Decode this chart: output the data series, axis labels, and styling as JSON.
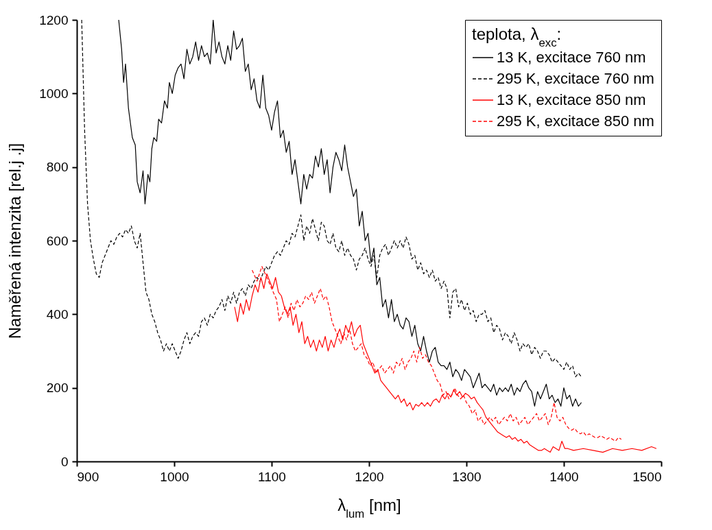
{
  "chart_data": {
    "type": "line",
    "xlabel": "λ$_{lum}$ [nm]",
    "ylabel": "Naměřená intenzita [rel.j .j]",
    "legend_title": "teplota, λ$_{exc}$:",
    "legend": "top right",
    "grid": false,
    "xlim": [
      900,
      1500
    ],
    "ylim": [
      0,
      1200
    ],
    "xticks": [
      900,
      1000,
      1100,
      1200,
      1300,
      1400,
      1500
    ],
    "yticks": [
      0,
      200,
      400,
      600,
      800,
      1000,
      1200
    ],
    "series": [
      {
        "name": "13 K, excitace 760 nm",
        "color": "#000000",
        "line_style": "solid",
        "x": [
          943,
          946,
          948,
          950,
          953,
          957,
          960,
          962,
          965,
          968,
          970,
          973,
          975,
          977,
          979,
          982,
          984,
          987,
          990,
          993,
          995,
          998,
          1001,
          1004,
          1007,
          1010,
          1013,
          1016,
          1019,
          1022,
          1025,
          1028,
          1031,
          1034,
          1037,
          1040,
          1043,
          1046,
          1049,
          1052,
          1055,
          1058,
          1061,
          1064,
          1067,
          1070,
          1073,
          1076,
          1079,
          1082,
          1085,
          1088,
          1091,
          1094,
          1097,
          1100,
          1103,
          1106,
          1109,
          1112,
          1115,
          1118,
          1121,
          1124,
          1127,
          1130,
          1133,
          1136,
          1139,
          1142,
          1145,
          1148,
          1151,
          1154,
          1157,
          1160,
          1163,
          1166,
          1169,
          1172,
          1175,
          1178,
          1181,
          1184,
          1187,
          1190,
          1193,
          1196,
          1199,
          1202,
          1205,
          1208,
          1211,
          1214,
          1217,
          1220,
          1223,
          1226,
          1229,
          1232,
          1235,
          1238,
          1241,
          1244,
          1247,
          1250,
          1253,
          1256,
          1259,
          1262,
          1265,
          1268,
          1271,
          1274,
          1277,
          1280,
          1283,
          1286,
          1289,
          1292,
          1295,
          1298,
          1301,
          1304,
          1307,
          1310,
          1313,
          1316,
          1319,
          1322,
          1325,
          1328,
          1331,
          1334,
          1337,
          1340,
          1343,
          1346,
          1349,
          1352,
          1355,
          1358,
          1361,
          1364,
          1367,
          1370,
          1373,
          1376,
          1379,
          1382,
          1385,
          1388,
          1391,
          1394,
          1397,
          1400,
          1403,
          1406,
          1409,
          1412,
          1415,
          1418
        ],
        "values": [
          1200,
          1120,
          1030,
          1080,
          960,
          880,
          860,
          760,
          730,
          790,
          700,
          780,
          760,
          850,
          880,
          870,
          930,
          920,
          980,
          960,
          1030,
          1000,
          1050,
          1070,
          1080,
          1040,
          1120,
          1080,
          1100,
          1140,
          1090,
          1130,
          1100,
          1110,
          1080,
          1200,
          1110,
          1140,
          1100,
          1080,
          1130,
          1090,
          1170,
          1120,
          1130,
          1150,
          1060,
          1080,
          1010,
          1040,
          980,
          960,
          1050,
          960,
          940,
          900,
          950,
          980,
          880,
          900,
          840,
          870,
          780,
          820,
          760,
          700,
          780,
          740,
          780,
          770,
          830,
          800,
          850,
          780,
          820,
          730,
          800,
          840,
          820,
          790,
          860,
          800,
          760,
          720,
          740,
          640,
          680,
          600,
          620,
          540,
          580,
          480,
          500,
          420,
          440,
          390,
          440,
          380,
          400,
          370,
          360,
          390,
          380,
          340,
          370,
          320,
          300,
          340,
          300,
          270,
          300,
          310,
          270,
          260,
          260,
          250,
          270,
          230,
          250,
          240,
          220,
          250,
          240,
          230,
          200,
          220,
          240,
          200,
          210,
          200,
          190,
          210,
          180,
          200,
          190,
          200,
          190,
          210,
          180,
          200,
          190,
          210,
          220,
          200,
          190,
          150,
          190,
          170,
          190,
          210,
          170,
          180,
          160,
          170,
          150,
          200,
          170,
          180,
          150,
          170,
          150,
          160
        ]
      },
      {
        "name": "295 K, excitace 760 nm",
        "color": "#000000",
        "line_style": "dashed",
        "x": [
          905,
          908,
          911,
          914,
          917,
          920,
          923,
          926,
          929,
          932,
          935,
          938,
          941,
          944,
          947,
          950,
          953,
          956,
          959,
          962,
          965,
          968,
          971,
          974,
          977,
          980,
          983,
          986,
          989,
          992,
          995,
          998,
          1001,
          1004,
          1007,
          1010,
          1013,
          1016,
          1019,
          1022,
          1025,
          1028,
          1031,
          1034,
          1037,
          1040,
          1043,
          1046,
          1049,
          1052,
          1055,
          1058,
          1061,
          1064,
          1067,
          1070,
          1073,
          1076,
          1079,
          1082,
          1085,
          1088,
          1091,
          1094,
          1097,
          1100,
          1103,
          1106,
          1109,
          1112,
          1115,
          1118,
          1121,
          1124,
          1127,
          1130,
          1133,
          1136,
          1139,
          1142,
          1145,
          1148,
          1151,
          1154,
          1157,
          1160,
          1163,
          1166,
          1169,
          1172,
          1175,
          1178,
          1181,
          1184,
          1187,
          1190,
          1193,
          1196,
          1199,
          1202,
          1205,
          1208,
          1211,
          1214,
          1217,
          1220,
          1223,
          1226,
          1229,
          1232,
          1235,
          1238,
          1241,
          1244,
          1247,
          1250,
          1253,
          1256,
          1259,
          1262,
          1265,
          1268,
          1271,
          1274,
          1277,
          1280,
          1283,
          1286,
          1289,
          1292,
          1295,
          1298,
          1301,
          1304,
          1307,
          1310,
          1313,
          1316,
          1319,
          1322,
          1325,
          1328,
          1331,
          1334,
          1337,
          1340,
          1343,
          1346,
          1349,
          1352,
          1355,
          1358,
          1361,
          1364,
          1367,
          1370,
          1373,
          1376,
          1379,
          1382,
          1385,
          1388,
          1391,
          1394,
          1397,
          1400,
          1403,
          1406,
          1409,
          1412,
          1415,
          1418
        ],
        "values": [
          1200,
          900,
          700,
          600,
          550,
          510,
          500,
          540,
          560,
          580,
          600,
          590,
          610,
          620,
          610,
          630,
          620,
          640,
          600,
          580,
          620,
          540,
          460,
          440,
          400,
          380,
          350,
          330,
          300,
          320,
          300,
          320,
          300,
          280,
          300,
          330,
          350,
          320,
          340,
          350,
          340,
          380,
          390,
          370,
          400,
          390,
          410,
          420,
          440,
          410,
          450,
          430,
          460,
          430,
          460,
          470,
          450,
          480,
          470,
          490,
          500,
          490,
          510,
          530,
          520,
          540,
          560,
          570,
          560,
          580,
          600,
          590,
          620,
          610,
          640,
          670,
          600,
          640,
          620,
          660,
          630,
          600,
          650,
          640,
          600,
          590,
          620,
          580,
          570,
          600,
          560,
          580,
          560,
          550,
          520,
          550,
          560,
          580,
          550,
          530,
          560,
          500,
          560,
          580,
          590,
          560,
          580,
          600,
          580,
          600,
          580,
          610,
          590,
          550,
          560,
          520,
          540,
          510,
          520,
          500,
          520,
          490,
          500,
          470,
          490,
          470,
          390,
          460,
          470,
          420,
          440,
          410,
          430,
          400,
          410,
          380,
          400,
          400,
          410,
          380,
          390,
          350,
          370,
          360,
          330,
          350,
          340,
          320,
          350,
          330,
          300,
          320,
          310,
          320,
          290,
          310,
          300,
          280,
          300,
          300,
          290,
          270,
          280,
          270,
          260,
          250,
          270,
          250,
          260,
          230,
          240,
          230
        ]
      },
      {
        "name": "13 K, excitace 850 nm",
        "color": "#ff0000",
        "line_style": "solid",
        "x": [
          1062,
          1065,
          1068,
          1071,
          1074,
          1077,
          1080,
          1083,
          1086,
          1089,
          1092,
          1095,
          1098,
          1101,
          1104,
          1107,
          1110,
          1113,
          1116,
          1119,
          1122,
          1125,
          1128,
          1131,
          1134,
          1137,
          1140,
          1143,
          1146,
          1149,
          1152,
          1155,
          1158,
          1161,
          1164,
          1167,
          1170,
          1173,
          1176,
          1179,
          1182,
          1185,
          1188,
          1191,
          1194,
          1197,
          1200,
          1203,
          1206,
          1209,
          1212,
          1215,
          1218,
          1221,
          1224,
          1227,
          1230,
          1233,
          1236,
          1239,
          1242,
          1245,
          1248,
          1251,
          1254,
          1257,
          1260,
          1263,
          1266,
          1269,
          1272,
          1275,
          1278,
          1281,
          1284,
          1287,
          1290,
          1293,
          1296,
          1299,
          1302,
          1305,
          1308,
          1311,
          1314,
          1317,
          1320,
          1323,
          1326,
          1329,
          1332,
          1335,
          1338,
          1341,
          1344,
          1347,
          1350,
          1353,
          1356,
          1359,
          1362,
          1365,
          1368,
          1371,
          1374,
          1377,
          1380,
          1383,
          1386,
          1389,
          1392,
          1395,
          1398,
          1401,
          1404,
          1410,
          1420,
          1430,
          1440,
          1450,
          1460,
          1470,
          1480,
          1490,
          1495
        ],
        "values": [
          420,
          380,
          430,
          400,
          440,
          410,
          450,
          480,
          460,
          500,
          470,
          510,
          490,
          470,
          500,
          460,
          450,
          420,
          400,
          420,
          370,
          400,
          350,
          380,
          320,
          340,
          310,
          330,
          300,
          330,
          310,
          340,
          300,
          330,
          310,
          340,
          360,
          330,
          370,
          350,
          380,
          340,
          360,
          370,
          320,
          300,
          280,
          260,
          240,
          250,
          220,
          210,
          200,
          190,
          180,
          170,
          180,
          160,
          170,
          150,
          160,
          140,
          155,
          150,
          160,
          150,
          160,
          150,
          165,
          170,
          160,
          180,
          170,
          185,
          175,
          195,
          180,
          190,
          175,
          185,
          180,
          170,
          175,
          160,
          150,
          140,
          120,
          110,
          100,
          90,
          80,
          75,
          70,
          65,
          70,
          60,
          65,
          55,
          60,
          50,
          55,
          45,
          40,
          35,
          30,
          30,
          35,
          30,
          25,
          40,
          35,
          30,
          55,
          35,
          35,
          30,
          35,
          30,
          25,
          35,
          30,
          35,
          30,
          40,
          35
        ]
      },
      {
        "name": "295 K, excitace 850 nm",
        "color": "#ff0000",
        "line_style": "dashed",
        "x": [
          1080,
          1085,
          1090,
          1095,
          1100,
          1105,
          1108,
          1111,
          1114,
          1117,
          1120,
          1123,
          1126,
          1129,
          1132,
          1135,
          1138,
          1141,
          1144,
          1147,
          1150,
          1153,
          1156,
          1159,
          1162,
          1165,
          1168,
          1171,
          1174,
          1177,
          1180,
          1183,
          1186,
          1189,
          1192,
          1195,
          1198,
          1201,
          1204,
          1207,
          1210,
          1213,
          1216,
          1219,
          1222,
          1225,
          1228,
          1231,
          1234,
          1237,
          1240,
          1243,
          1246,
          1249,
          1252,
          1255,
          1258,
          1261,
          1264,
          1267,
          1270,
          1273,
          1276,
          1279,
          1282,
          1285,
          1288,
          1291,
          1294,
          1297,
          1300,
          1303,
          1306,
          1309,
          1312,
          1315,
          1318,
          1321,
          1324,
          1327,
          1330,
          1333,
          1336,
          1339,
          1342,
          1345,
          1348,
          1351,
          1354,
          1357,
          1360,
          1363,
          1366,
          1369,
          1372,
          1375,
          1378,
          1381,
          1384,
          1387,
          1390,
          1393,
          1396,
          1399,
          1402,
          1405,
          1408,
          1411,
          1414,
          1417,
          1420,
          1423,
          1426,
          1429,
          1432,
          1435,
          1438,
          1441,
          1444,
          1447,
          1450,
          1453,
          1456,
          1459
        ],
        "values": [
          520,
          490,
          530,
          500,
          470,
          440,
          380,
          400,
          420,
          390,
          430,
          410,
          440,
          420,
          430,
          450,
          440,
          460,
          430,
          450,
          470,
          440,
          450,
          420,
          380,
          360,
          340,
          320,
          350,
          330,
          360,
          320,
          300,
          310,
          320,
          290,
          280,
          260,
          270,
          240,
          250,
          260,
          240,
          250,
          260,
          240,
          270,
          260,
          280,
          250,
          270,
          280,
          300,
          270,
          310,
          280,
          290,
          270,
          260,
          240,
          220,
          210,
          180,
          190,
          170,
          180,
          200,
          180,
          170,
          180,
          160,
          150,
          130,
          140,
          110,
          120,
          100,
          110,
          120,
          110,
          120,
          100,
          110,
          120,
          110,
          130,
          110,
          120,
          100,
          110,
          120,
          100,
          110,
          120,
          130,
          110,
          120,
          130,
          100,
          120,
          160,
          120,
          110,
          120,
          100,
          90,
          85,
          90,
          80,
          75,
          80,
          70,
          75,
          70,
          65,
          65,
          70,
          65,
          60,
          65,
          60,
          55,
          65,
          60
        ]
      }
    ]
  }
}
